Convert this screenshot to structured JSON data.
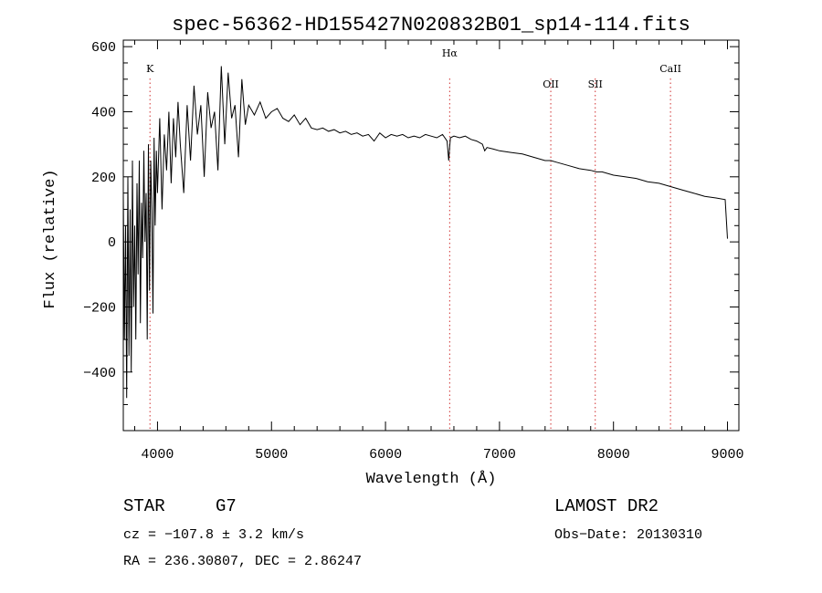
{
  "chart_data": {
    "type": "line",
    "title": "spec-56362-HD155427N020832B01_sp14-114.fits",
    "xlabel": "Wavelength (Å)",
    "ylabel": "Flux (relative)",
    "xlim": [
      3700,
      9100
    ],
    "ylim": [
      -580,
      620
    ],
    "x_ticks": [
      4000,
      5000,
      6000,
      7000,
      8000,
      9000
    ],
    "y_ticks": [
      -400,
      -200,
      0,
      200,
      400,
      600
    ],
    "series": [
      {
        "x": [
          3700,
          3710,
          3720,
          3730,
          3740,
          3750,
          3760,
          3770,
          3780,
          3790,
          3800,
          3810,
          3820,
          3830,
          3840,
          3850,
          3860,
          3870,
          3880,
          3890,
          3900,
          3910,
          3920,
          3930,
          3940,
          3950,
          3960,
          3970,
          3980,
          3990,
          4000,
          4020,
          4040,
          4060,
          4080,
          4100,
          4120,
          4140,
          4160,
          4180,
          4200,
          4230,
          4260,
          4290,
          4320,
          4350,
          4380,
          4410,
          4440,
          4470,
          4500,
          4530,
          4560,
          4590,
          4620,
          4650,
          4680,
          4710,
          4740,
          4770,
          4800,
          4850,
          4900,
          4950,
          5000,
          5050,
          5100,
          5150,
          5200,
          5250,
          5300,
          5350,
          5400,
          5450,
          5500,
          5550,
          5600,
          5650,
          5700,
          5750,
          5800,
          5850,
          5900,
          5950,
          6000,
          6050,
          6100,
          6150,
          6200,
          6250,
          6300,
          6350,
          6400,
          6450,
          6500,
          6540,
          6555,
          6563,
          6570,
          6600,
          6650,
          6700,
          6750,
          6800,
          6850,
          6870,
          6890,
          6950,
          7000,
          7100,
          7200,
          7300,
          7400,
          7450,
          7500,
          7600,
          7700,
          7800,
          7850,
          7900,
          8000,
          8100,
          8200,
          8300,
          8400,
          8500,
          8600,
          8700,
          8800,
          8900,
          8980,
          9000
        ],
        "y": [
          150,
          -300,
          50,
          -480,
          200,
          -350,
          100,
          -400,
          250,
          -200,
          50,
          -300,
          180,
          -100,
          250,
          -250,
          120,
          -50,
          280,
          0,
          150,
          -300,
          300,
          -150,
          250,
          100,
          -220,
          320,
          50,
          280,
          150,
          380,
          100,
          330,
          220,
          400,
          180,
          380,
          260,
          430,
          300,
          150,
          420,
          250,
          480,
          330,
          420,
          200,
          460,
          350,
          400,
          220,
          540,
          300,
          520,
          380,
          420,
          260,
          500,
          360,
          420,
          390,
          430,
          380,
          400,
          410,
          380,
          370,
          390,
          360,
          380,
          350,
          345,
          350,
          340,
          345,
          335,
          340,
          330,
          335,
          325,
          330,
          310,
          335,
          320,
          330,
          325,
          330,
          320,
          325,
          320,
          330,
          325,
          320,
          330,
          310,
          250,
          290,
          320,
          325,
          320,
          325,
          315,
          310,
          300,
          280,
          290,
          285,
          280,
          275,
          270,
          260,
          250,
          250,
          245,
          235,
          225,
          220,
          215,
          215,
          205,
          200,
          195,
          185,
          180,
          170,
          160,
          150,
          140,
          135,
          130,
          10
        ]
      }
    ],
    "markers": [
      {
        "label": "K",
        "x": 3934
      },
      {
        "label": "Hα",
        "x": 6563
      },
      {
        "label": "OII",
        "x": 7450
      },
      {
        "label": "SII",
        "x": 7840
      },
      {
        "label": "CaII",
        "x": 8500
      }
    ],
    "grid": false,
    "legend": "none"
  },
  "info": {
    "object_class": "STAR",
    "subclass": "G7",
    "survey": "LAMOST DR2",
    "cz": "cz = −107.8 ± 3.2 km/s",
    "obs_date": "Obs−Date: 20130310",
    "coords": "RA = 236.30807, DEC =   2.86247"
  }
}
